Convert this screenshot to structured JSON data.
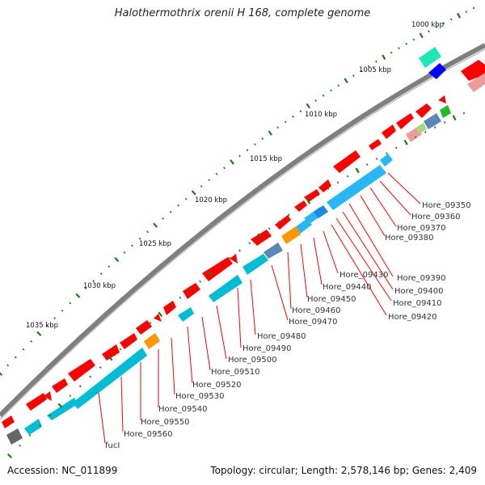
{
  "title": "Halothermothrix orenii H 168, complete genome",
  "accession": "Accession: NC_011899",
  "summary": "Topology: circular; Length: 2,578,146 bp; Genes: 2,409",
  "ruler": {
    "labels": [
      "1000 kbp",
      "1005 kbp",
      "1010 kbp",
      "1015 kbp",
      "1020 kbp",
      "1025 kbp",
      "1030 kbp",
      "1035 kbp"
    ]
  },
  "colors": {
    "backbone": "#7f7f7f",
    "forward_gene": "#ff0000",
    "reverse_gene_cyan": "#00bcd4",
    "reverse_gene_sky": "#29b6f6",
    "orange": "#ff9800",
    "blue": "#0000ff",
    "teal": "#1de9b6",
    "pink": "#ef9a9a",
    "steel": "#5c85b8",
    "green": "#22bb22",
    "gray": "#666666",
    "tick_green": "#1a7a1a",
    "label_line": "#ff0000"
  },
  "gene_labels": [
    "Hore_09350",
    "Hore_09360",
    "Hore_09370",
    "Hore_09380",
    "Hore_09390",
    "Hore_09400",
    "Hore_09410",
    "Hore_09420",
    "Hore_09430",
    "Hore_09440",
    "Hore_09450",
    "Hore_09460",
    "Hore_09470",
    "Hore_09480",
    "Hore_09490",
    "Hore_09500",
    "Hore_09510",
    "Hore_09520",
    "Hore_09530",
    "Hore_09540",
    "Hore_09550",
    "Hore_09560",
    "fucI"
  ]
}
